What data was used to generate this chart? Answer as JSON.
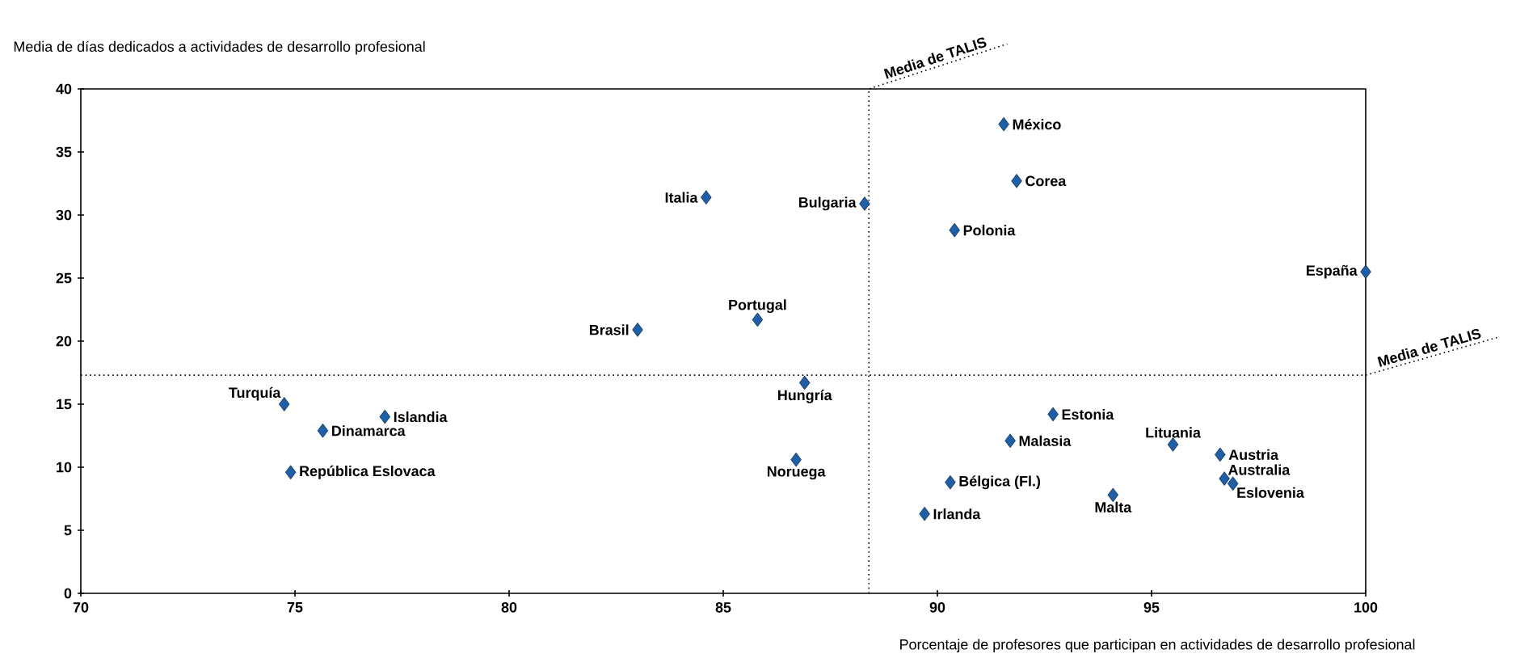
{
  "chart_data": {
    "type": "scatter",
    "xlabel": "Porcentaje de profesores que participan en actividades de desarrollo profesional",
    "ylabel": "Media de días dedicados a actividades de desarrollo profesional",
    "xlim": [
      70,
      100
    ],
    "ylim": [
      0,
      40
    ],
    "xticks": [
      70,
      75,
      80,
      85,
      90,
      95,
      100
    ],
    "yticks": [
      0,
      5,
      10,
      15,
      20,
      25,
      30,
      35,
      40
    ],
    "marker": "diamond",
    "grid": false,
    "series": [
      {
        "color": "#1f5fa8",
        "x": [
          91.55,
          91.85,
          90.4,
          88.3,
          84.6,
          100,
          85.8,
          83.0,
          86.9,
          74.75,
          77.1,
          75.65,
          74.9,
          86.7,
          92.7,
          91.7,
          95.5,
          96.6,
          96.7,
          96.9,
          90.3,
          94.1,
          89.7
        ],
        "values": [
          37.2,
          32.7,
          28.8,
          30.9,
          31.4,
          25.5,
          21.7,
          20.9,
          16.7,
          15.0,
          14.0,
          12.9,
          9.6,
          10.6,
          14.2,
          12.1,
          11.8,
          11.0,
          9.1,
          8.7,
          8.8,
          7.8,
          6.3
        ]
      }
    ],
    "ref_lines": [
      {
        "axis": "x",
        "value": 88.4,
        "label": "Media de TALIS",
        "line_style": "dotted"
      },
      {
        "axis": "y",
        "value": 17.3,
        "label": "Media de TALIS",
        "line_style": "dotted"
      }
    ],
    "annotations": [
      {
        "text": "México",
        "x": 91.55,
        "y": 37.2
      },
      {
        "text": "Corea",
        "x": 91.85,
        "y": 32.7
      },
      {
        "text": "Polonia",
        "x": 90.4,
        "y": 28.8
      },
      {
        "text": "Bulgaria",
        "x": 88.3,
        "y": 30.9
      },
      {
        "text": "Italia",
        "x": 84.6,
        "y": 31.4
      },
      {
        "text": "España",
        "x": 100,
        "y": 25.5
      },
      {
        "text": "Portugal",
        "x": 85.8,
        "y": 21.7
      },
      {
        "text": "Brasil",
        "x": 83.0,
        "y": 20.9
      },
      {
        "text": "Hungría",
        "x": 86.9,
        "y": 16.7
      },
      {
        "text": "Turquía",
        "x": 74.75,
        "y": 15.0
      },
      {
        "text": "Islandia",
        "x": 77.1,
        "y": 14.0
      },
      {
        "text": "Dinamarca",
        "x": 75.65,
        "y": 12.9
      },
      {
        "text": "República Eslovaca",
        "x": 74.9,
        "y": 9.6
      },
      {
        "text": "Noruega",
        "x": 86.7,
        "y": 10.6
      },
      {
        "text": "Estonia",
        "x": 92.7,
        "y": 14.2
      },
      {
        "text": "Malasia",
        "x": 91.7,
        "y": 12.1
      },
      {
        "text": "Lituania",
        "x": 95.5,
        "y": 11.8
      },
      {
        "text": "Austria",
        "x": 96.6,
        "y": 11.0
      },
      {
        "text": "Australia",
        "x": 96.7,
        "y": 9.1
      },
      {
        "text": "Eslovenia",
        "x": 96.9,
        "y": 8.7
      },
      {
        "text": "Bélgica (Fl.)",
        "x": 90.3,
        "y": 8.8
      },
      {
        "text": "Malta",
        "x": 94.1,
        "y": 7.8
      },
      {
        "text": "Irlanda",
        "x": 89.7,
        "y": 6.3
      }
    ]
  }
}
